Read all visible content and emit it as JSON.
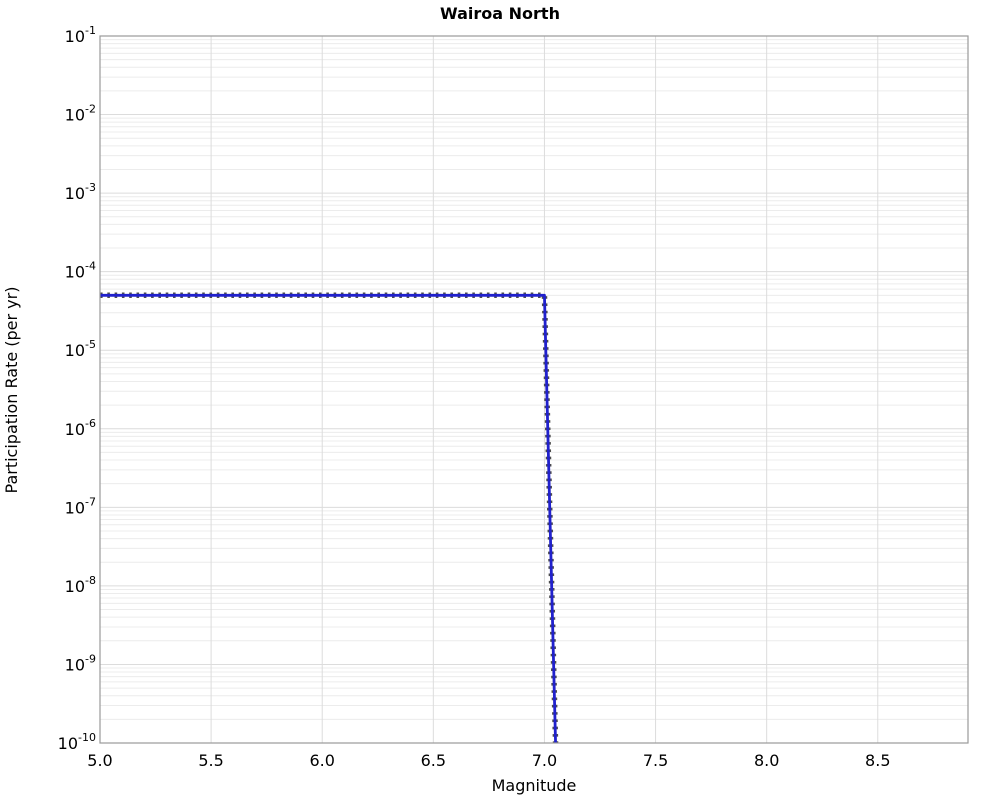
{
  "chart_data": {
    "type": "line",
    "title": "Wairoa North",
    "xlabel": "Magnitude",
    "ylabel": "Participation Rate (per yr)",
    "xlim": [
      5.0,
      8.906
    ],
    "ylim": [
      1e-10,
      0.1
    ],
    "ylim_exponents": [
      -1,
      -10
    ],
    "x_ticks": [
      5.0,
      5.5,
      6.0,
      6.5,
      7.0,
      7.5,
      8.0,
      8.5
    ],
    "y_tick_exponents": [
      -1,
      -2,
      -3,
      -4,
      -5,
      -6,
      -7,
      -8,
      -9,
      -10
    ],
    "grid": {
      "horizontal_minor_log": true,
      "horizontal_major": true,
      "vertical_major": true,
      "minor_color": "#ececec",
      "major_color": "#dcdcdc"
    },
    "axes_border_color": "#9a9a9a",
    "legend": "none",
    "series": [
      {
        "name": "participation-rate",
        "description": "constant rate 5e-5/yr from M5.0 to M7.0, then sharp drop to 1e-10 at M7.05",
        "line_color": "#2121cc",
        "dash_overlay_color": "#4d4d4d",
        "points": [
          [
            5.0,
            5e-05
          ],
          [
            7.0,
            5e-05
          ],
          [
            7.05,
            1e-10
          ]
        ]
      }
    ]
  }
}
